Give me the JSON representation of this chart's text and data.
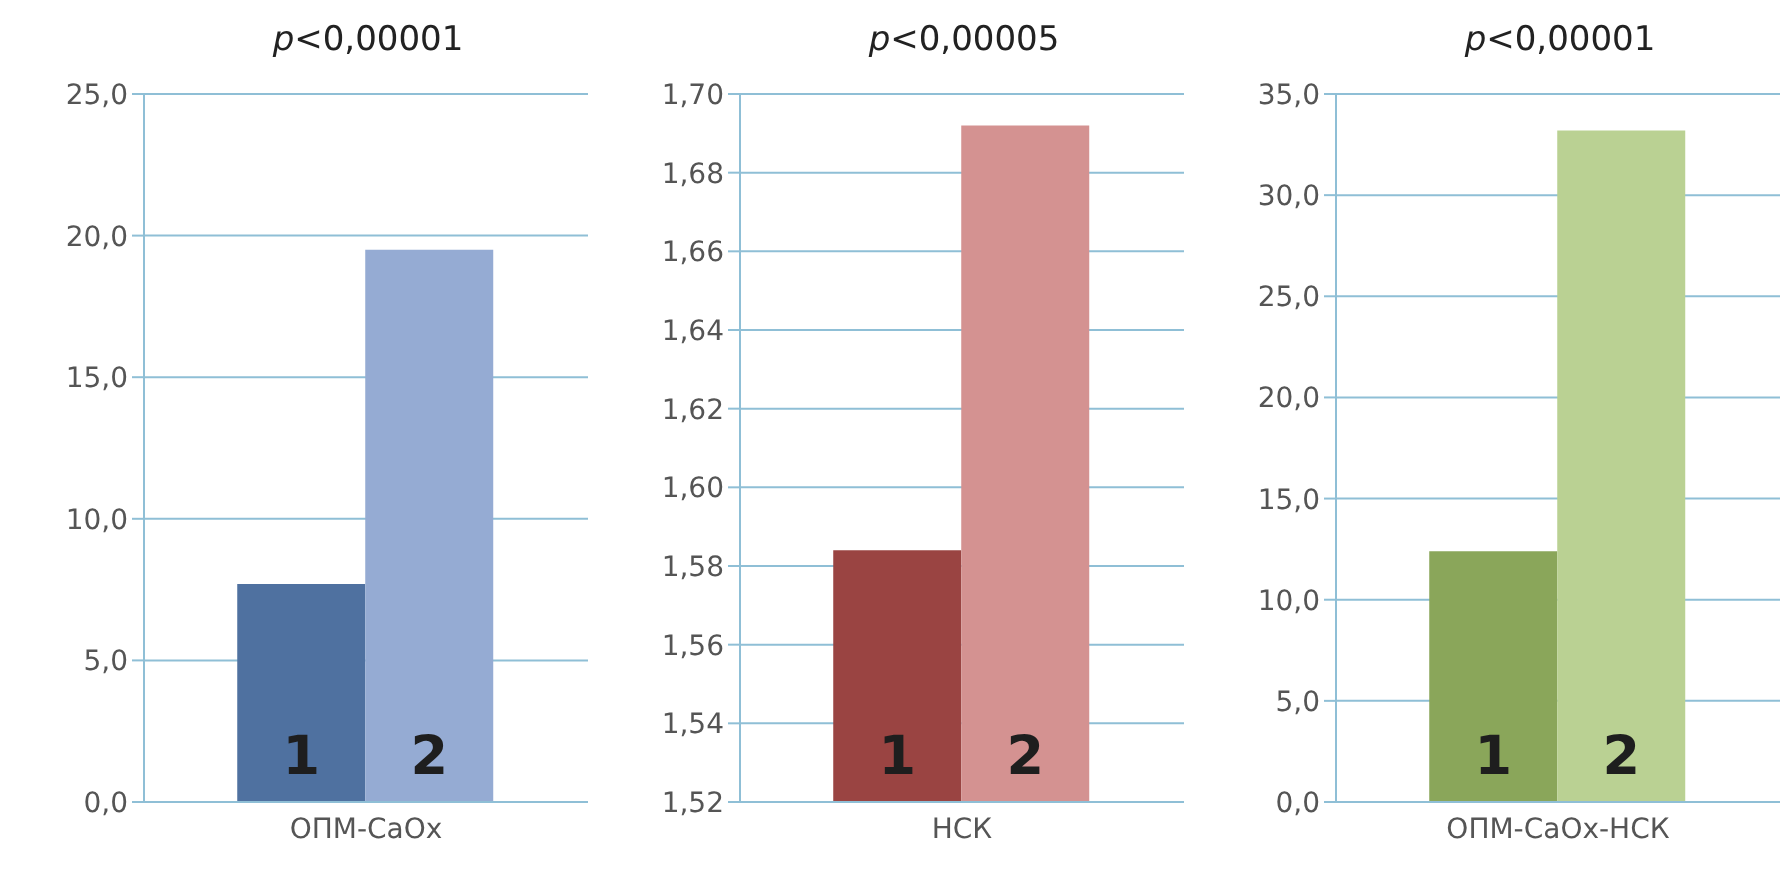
{
  "chart_data": [
    {
      "type": "bar",
      "title": "p<0,00001",
      "categories": [
        "ОПМ-CaOx"
      ],
      "series": [
        {
          "name": "1",
          "color": "#4f71a0",
          "values": [
            7.7
          ]
        },
        {
          "name": "2",
          "color": "#95abd3",
          "values": [
            19.5
          ]
        }
      ],
      "ylim": [
        0,
        25
      ],
      "yticks": [
        {
          "value": 0,
          "label": "0,0"
        },
        {
          "value": 5,
          "label": "5,0"
        },
        {
          "value": 10,
          "label": "10,0"
        },
        {
          "value": 15,
          "label": "15,0"
        },
        {
          "value": 20,
          "label": "20,0"
        },
        {
          "value": 25,
          "label": "25,0"
        }
      ],
      "grid": "y",
      "legend": false
    },
    {
      "type": "bar",
      "title": "p<0,00005",
      "categories": [
        "НСК"
      ],
      "series": [
        {
          "name": "1",
          "color": "#9a4442",
          "values": [
            1.584
          ]
        },
        {
          "name": "2",
          "color": "#d49291",
          "values": [
            1.692
          ]
        }
      ],
      "ylim": [
        1.52,
        1.7
      ],
      "yticks": [
        {
          "value": 1.52,
          "label": "1,52"
        },
        {
          "value": 1.54,
          "label": "1,54"
        },
        {
          "value": 1.56,
          "label": "1,56"
        },
        {
          "value": 1.58,
          "label": "1,58"
        },
        {
          "value": 1.6,
          "label": "1,60"
        },
        {
          "value": 1.62,
          "label": "1,62"
        },
        {
          "value": 1.64,
          "label": "1,64"
        },
        {
          "value": 1.66,
          "label": "1,66"
        },
        {
          "value": 1.68,
          "label": "1,68"
        },
        {
          "value": 1.7,
          "label": "1,70"
        }
      ],
      "grid": "y",
      "legend": false
    },
    {
      "type": "bar",
      "title": "p<0,00001",
      "categories": [
        "ОПМ-CaOx-НСК"
      ],
      "series": [
        {
          "name": "1",
          "color": "#8aa65a",
          "values": [
            12.4
          ]
        },
        {
          "name": "2",
          "color": "#bad193",
          "values": [
            33.2
          ]
        }
      ],
      "ylim": [
        0,
        35
      ],
      "yticks": [
        {
          "value": 0,
          "label": "0,0"
        },
        {
          "value": 5,
          "label": "5,0"
        },
        {
          "value": 10,
          "label": "10,0"
        },
        {
          "value": 15,
          "label": "15,0"
        },
        {
          "value": 20,
          "label": "20,0"
        },
        {
          "value": 25,
          "label": "25,0"
        },
        {
          "value": 30,
          "label": "30,0"
        },
        {
          "value": 35,
          "label": "35,0"
        }
      ],
      "grid": "y",
      "legend": false
    }
  ]
}
